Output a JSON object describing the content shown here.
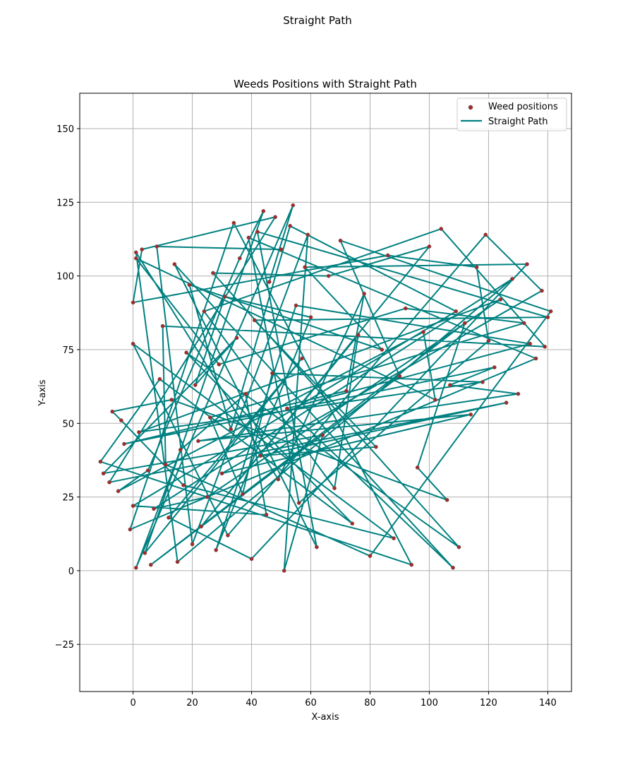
{
  "figure": {
    "suptitle": "Straight Path"
  },
  "colors": {
    "path": "#008080",
    "points": "#a52a2a",
    "grid": "#b0b0b0"
  },
  "chart_data": {
    "type": "scatter",
    "title": "Weeds Positions with Straight Path",
    "xlabel": "X-axis",
    "ylabel": "Y-axis",
    "xlim": [
      -18,
      148
    ],
    "ylim": [
      -41,
      162
    ],
    "xticks": [
      0,
      20,
      40,
      60,
      80,
      100,
      120,
      140
    ],
    "yticks": [
      -25,
      0,
      25,
      50,
      75,
      100,
      125,
      150
    ],
    "ytick_labels": [
      "−25",
      "0",
      "25",
      "50",
      "75",
      "100",
      "125",
      "150"
    ],
    "grid": true,
    "legend": {
      "placement": "top-right",
      "entries": [
        "Weed positions",
        "Straight Path"
      ]
    },
    "series": [
      {
        "name": "Weed positions",
        "kind": "scatter",
        "x": [
          -11,
          -10,
          -8,
          -7,
          -5,
          -4,
          -3,
          -1,
          0,
          0,
          0,
          1,
          1,
          1,
          2,
          3,
          4,
          5,
          6,
          7,
          8,
          9,
          10,
          11,
          12,
          13,
          14,
          15,
          16,
          17,
          18,
          19,
          20,
          21,
          22,
          23,
          24,
          25,
          26,
          27,
          28,
          29,
          30,
          31,
          32,
          33,
          34,
          35,
          36,
          37,
          38,
          39,
          40,
          41,
          42,
          43,
          44,
          45,
          46,
          47,
          48,
          49,
          50,
          51,
          52,
          53,
          54,
          55,
          56,
          57,
          58,
          59,
          60,
          62,
          64,
          66,
          68,
          70,
          72,
          74,
          76,
          78,
          80,
          82,
          84,
          86,
          88,
          90,
          92,
          94,
          96,
          98,
          100,
          102,
          104,
          106,
          107,
          108,
          109,
          110,
          112,
          114,
          116,
          118,
          119,
          120,
          122,
          124,
          126,
          128,
          130,
          132,
          133,
          134,
          136,
          138,
          139,
          140,
          141
        ],
        "y": [
          37,
          33,
          30,
          54,
          27,
          51,
          43,
          14,
          22,
          77,
          91,
          106,
          108,
          1,
          47,
          109,
          6,
          34,
          2,
          21,
          110,
          65,
          83,
          36,
          18,
          58,
          104,
          3,
          41,
          29,
          74,
          97,
          9,
          63,
          44,
          15,
          88,
          25,
          52,
          101,
          7,
          70,
          33,
          93,
          12,
          48,
          118,
          79,
          106,
          26,
          60,
          113,
          4,
          85,
          115,
          39,
          122,
          19,
          98,
          67,
          120,
          31,
          109,
          0,
          55,
          117,
          124,
          90,
          23,
          72,
          103,
          114,
          86,
          8,
          46,
          100,
          28,
          112,
          61,
          16,
          80,
          94,
          5,
          42,
          75,
          107,
          11,
          66,
          89,
          2,
          35,
          81,
          110,
          58,
          116,
          24,
          63,
          1,
          88,
          8,
          84,
          53,
          103,
          64,
          114,
          78,
          69,
          92,
          57,
          99,
          60,
          84,
          104,
          77,
          72,
          95,
          76,
          86,
          88
        ]
      },
      {
        "name": "Straight Path",
        "kind": "line",
        "order_seed": 7
      }
    ]
  }
}
